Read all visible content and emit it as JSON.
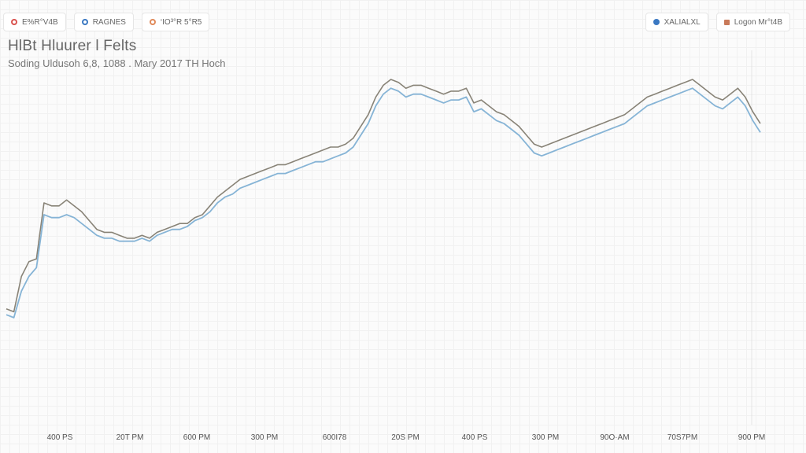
{
  "toolbar_left": [
    {
      "label": "E%R°V4B",
      "icon": "circle-outline-icon",
      "color": "#d9534f"
    },
    {
      "label": "RAGNES",
      "icon": "circle-outline-icon",
      "color": "#3a78c2"
    },
    {
      "label": "‘IO³°R 5°R5",
      "icon": "circle-outline-icon",
      "color": "#e08a5a"
    }
  ],
  "toolbar_right": [
    {
      "label": "XALIALXL",
      "icon": "circle-filled-icon",
      "color": "#3a78c2"
    },
    {
      "label": "Logon Mr°t4B",
      "icon": "square-icon",
      "color": "#c97a5a"
    }
  ],
  "chart_data": {
    "type": "line",
    "title": "HlBt Hluurer l Felts",
    "subtitle": "Soding Uldusoh 6,8, 1088 . Mary 2017 TH Hoch",
    "xlabel": "",
    "ylabel": "",
    "x_ticks": [
      "400 PS",
      "20T PM",
      "600 PM",
      "300 PM",
      "600I78",
      "20S PM",
      "400 PS",
      "300 PM",
      "90O·AM",
      "70S7PM",
      "900 PM"
    ],
    "grid": true,
    "colors": {
      "series_1": "#888377",
      "series_2": "#86b4d6"
    },
    "x": [
      0,
      1,
      2,
      3,
      4,
      5,
      6,
      7,
      8,
      9,
      10,
      11,
      12,
      13,
      14,
      15,
      16,
      17,
      18,
      19,
      20,
      21,
      22,
      23,
      24,
      25,
      26,
      27,
      28,
      29,
      30,
      31,
      32,
      33,
      34,
      35,
      36,
      37,
      38,
      39,
      40,
      41,
      42,
      43,
      44,
      45,
      46,
      47,
      48,
      49,
      50,
      51,
      52,
      53,
      54,
      55,
      56,
      57,
      58,
      59,
      60,
      61,
      62,
      63,
      64,
      65,
      66,
      67,
      68,
      69,
      70,
      71,
      72,
      73,
      74,
      75,
      76,
      77,
      78,
      79,
      80,
      81,
      82,
      83,
      84,
      85,
      86,
      87,
      88,
      89,
      90,
      91,
      92,
      93,
      94,
      95,
      96,
      97,
      98,
      99,
      100
    ],
    "y_range": [
      0,
      100
    ],
    "series": [
      {
        "values": [
          18,
          17,
          29,
          34,
          35,
          54,
          53,
          53,
          55,
          53,
          51,
          48,
          45,
          44,
          44,
          43,
          42,
          42,
          43,
          42,
          44,
          45,
          46,
          47,
          47,
          49,
          50,
          53,
          56,
          58,
          60,
          62,
          63,
          64,
          65,
          66,
          67,
          67,
          68,
          69,
          70,
          71,
          72,
          73,
          73,
          74,
          76,
          80,
          84,
          90,
          94,
          96,
          95,
          93,
          94,
          94,
          93,
          92,
          91,
          92,
          92,
          93,
          88,
          89,
          87,
          85,
          84,
          82,
          80,
          77,
          74,
          73,
          74,
          75,
          76,
          77,
          78,
          79,
          80,
          81,
          82,
          83,
          84,
          86,
          88,
          90,
          91,
          92,
          93,
          94,
          95,
          96,
          94,
          92,
          90,
          89,
          91,
          93,
          90,
          85,
          81
        ]
      },
      {
        "values": [
          16,
          15,
          24,
          29,
          32,
          50,
          49,
          49,
          50,
          49,
          47,
          45,
          43,
          42,
          42,
          41,
          41,
          41,
          42,
          41,
          43,
          44,
          45,
          45,
          46,
          48,
          49,
          51,
          54,
          56,
          57,
          59,
          60,
          61,
          62,
          63,
          64,
          64,
          65,
          66,
          67,
          68,
          68,
          69,
          70,
          71,
          73,
          77,
          81,
          87,
          91,
          93,
          92,
          90,
          91,
          91,
          90,
          89,
          88,
          89,
          89,
          90,
          85,
          86,
          84,
          82,
          81,
          79,
          77,
          74,
          71,
          70,
          71,
          72,
          73,
          74,
          75,
          76,
          77,
          78,
          79,
          80,
          81,
          83,
          85,
          87,
          88,
          89,
          90,
          91,
          92,
          93,
          91,
          89,
          87,
          86,
          88,
          90,
          87,
          82,
          78
        ]
      }
    ]
  }
}
